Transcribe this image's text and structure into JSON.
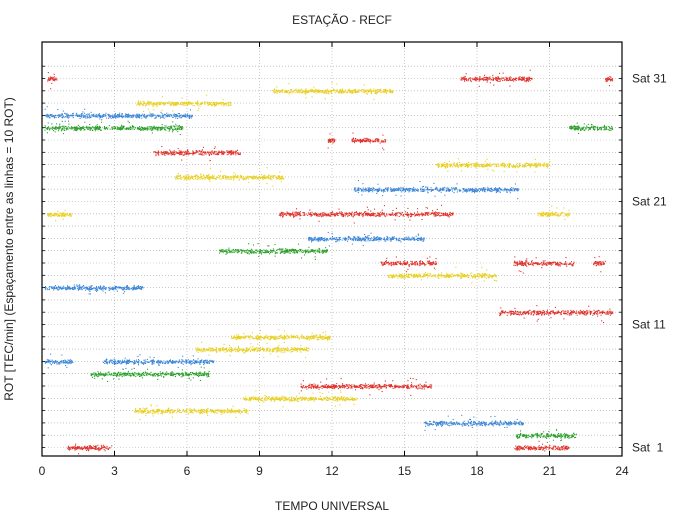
{
  "chart_data": {
    "type": "scatter",
    "title": "ESTAÇÃO - RECF",
    "xlabel": "TEMPO UNIVERSAL",
    "ylabel": "ROT [TEC/min] (Espaçamento entre as linhas = 10 ROT)",
    "xlim": [
      0,
      24
    ],
    "xticks": [
      0,
      3,
      6,
      9,
      12,
      15,
      18,
      21,
      24
    ],
    "ylim": [
      0,
      32
    ],
    "grid": true,
    "colors": {
      "red": "#e0302a",
      "blue": "#3a86d8",
      "green": "#2aa02a",
      "yellow": "#e8d020",
      "frame": "#000000",
      "grid": "#a8a8a8"
    },
    "satellite_labels": [
      {
        "text": "Sat 31",
        "line": 31
      },
      {
        "text": "Sat 21",
        "line": 21
      },
      {
        "text": "Sat 11",
        "line": 11
      },
      {
        "text": "Sat  1",
        "line": 1
      }
    ],
    "passes": [
      {
        "line": 31,
        "color": "red",
        "x": [
          0.2,
          0.6
        ]
      },
      {
        "line": 31,
        "color": "red",
        "x": [
          17.3,
          20.3
        ]
      },
      {
        "line": 31,
        "color": "red",
        "x": [
          23.3,
          23.6
        ]
      },
      {
        "line": 30,
        "color": "yellow",
        "x": [
          9.5,
          14.5
        ]
      },
      {
        "line": 29,
        "color": "yellow",
        "x": [
          3.9,
          7.8
        ]
      },
      {
        "line": 28,
        "color": "blue",
        "x": [
          0.1,
          6.2
        ]
      },
      {
        "line": 27,
        "color": "green",
        "x": [
          0.1,
          2.3
        ]
      },
      {
        "line": 27,
        "color": "green",
        "x": [
          2.2,
          5.8
        ]
      },
      {
        "line": 27,
        "color": "green",
        "x": [
          21.8,
          23.6
        ]
      },
      {
        "line": 26,
        "color": "red",
        "x": [
          11.8,
          12.1
        ]
      },
      {
        "line": 26,
        "color": "red",
        "x": [
          12.8,
          14.2
        ]
      },
      {
        "line": 25,
        "color": "red",
        "x": [
          4.6,
          8.2
        ]
      },
      {
        "line": 24,
        "color": "yellow",
        "x": [
          16.3,
          21.0
        ]
      },
      {
        "line": 23,
        "color": "yellow",
        "x": [
          5.5,
          10.0
        ]
      },
      {
        "line": 22,
        "color": "blue",
        "x": [
          12.9,
          19.7
        ]
      },
      {
        "line": 20,
        "color": "red",
        "x": [
          9.8,
          17.0
        ]
      },
      {
        "line": 20,
        "color": "yellow",
        "x": [
          0.2,
          1.2
        ]
      },
      {
        "line": 20,
        "color": "yellow",
        "x": [
          20.5,
          21.8
        ]
      },
      {
        "line": 18,
        "color": "blue",
        "x": [
          11.0,
          15.8
        ]
      },
      {
        "line": 17,
        "color": "green",
        "x": [
          7.3,
          11.8
        ]
      },
      {
        "line": 16,
        "color": "red",
        "x": [
          14.0,
          16.3
        ]
      },
      {
        "line": 16,
        "color": "red",
        "x": [
          19.5,
          22.0
        ]
      },
      {
        "line": 16,
        "color": "red",
        "x": [
          22.8,
          23.3
        ]
      },
      {
        "line": 15,
        "color": "yellow",
        "x": [
          14.3,
          18.8
        ]
      },
      {
        "line": 14,
        "color": "blue",
        "x": [
          0.1,
          4.2
        ]
      },
      {
        "line": 12,
        "color": "red",
        "x": [
          18.9,
          23.6
        ]
      },
      {
        "line": 10,
        "color": "yellow",
        "x": [
          7.8,
          11.9
        ]
      },
      {
        "line": 9,
        "color": "yellow",
        "x": [
          6.3,
          11.0
        ]
      },
      {
        "line": 8,
        "color": "blue",
        "x": [
          0.1,
          1.3
        ]
      },
      {
        "line": 8,
        "color": "blue",
        "x": [
          2.5,
          7.1
        ]
      },
      {
        "line": 7,
        "color": "green",
        "x": [
          2.0,
          6.9
        ]
      },
      {
        "line": 6,
        "color": "red",
        "x": [
          10.7,
          16.1
        ]
      },
      {
        "line": 5,
        "color": "yellow",
        "x": [
          8.3,
          13.0
        ]
      },
      {
        "line": 4,
        "color": "yellow",
        "x": [
          3.8,
          8.5
        ]
      },
      {
        "line": 3,
        "color": "blue",
        "x": [
          15.8,
          19.9
        ]
      },
      {
        "line": 2,
        "color": "green",
        "x": [
          19.6,
          22.1
        ]
      },
      {
        "line": 1,
        "color": "red",
        "x": [
          1.0,
          2.9
        ]
      },
      {
        "line": 1,
        "color": "red",
        "x": [
          19.5,
          21.8
        ]
      }
    ]
  }
}
